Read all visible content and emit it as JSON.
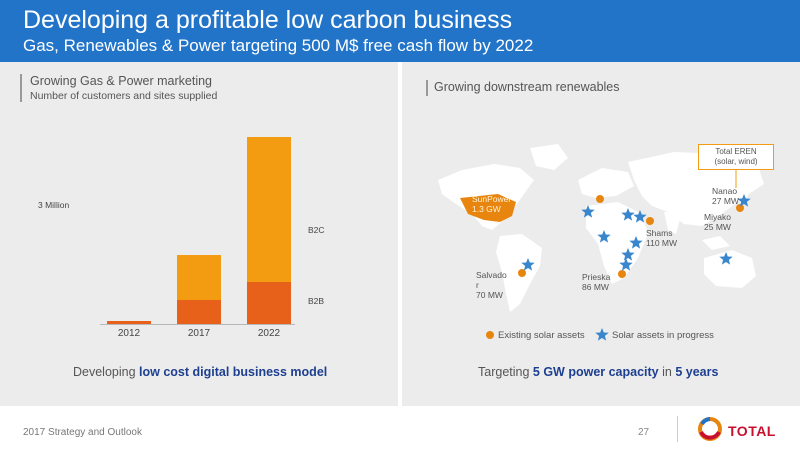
{
  "header": {
    "title": "Developing a profitable low carbon business",
    "subtitle": "Gas, Renewables & Power targeting 500 M$ free cash flow by 2022"
  },
  "left": {
    "title": "Growing Gas & Power marketing",
    "subtitle": "Number of customers and sites supplied",
    "caption_pre": "Developing ",
    "caption_bold": "low cost digital business model"
  },
  "chart_data": {
    "type": "bar",
    "stacked": true,
    "categories": [
      "2012",
      "2017",
      "2022"
    ],
    "series": [
      {
        "name": "B2B",
        "values": [
          0.07,
          0.58,
          1.0
        ]
      },
      {
        "name": "B2C",
        "values": [
          0.0,
          1.05,
          3.42
        ]
      }
    ],
    "annotations": [
      "3 Million"
    ],
    "ylim": [
      0,
      4.5
    ],
    "colors": {
      "B2B": "#e8611a",
      "B2C": "#f39c12"
    }
  },
  "right": {
    "title": "Growing downstream renewables",
    "caption_pre": "Targeting ",
    "caption_bold1": "5 GW power capacity",
    "caption_mid": " in ",
    "caption_bold2": "5 years",
    "callout_line1": "Total EREN",
    "callout_line2": "(solar, wind)",
    "labels": {
      "sunpower_1": "SunPower",
      "sunpower_2": "1.3 GW",
      "nanao_1": "Nanao",
      "nanao_2": "27 MW",
      "miyako_1": "Miyako",
      "miyako_2": "25 MW",
      "shams_1": "Shams",
      "shams_2": "110 MW",
      "salvador_1": "Salvado",
      "salvador_2": "r",
      "salvador_3": "70 MW",
      "prieska_1": "Prieska",
      "prieska_2": "86 MW"
    },
    "legend": {
      "existing": "Existing solar assets",
      "progress": "Solar assets in progress"
    },
    "colors": {
      "land": "#ffffff",
      "usa": "#e8850f",
      "dot": "#e8850f",
      "star": "#3a86cc"
    }
  },
  "footer": {
    "left": "2017 Strategy and Outlook",
    "page": "27",
    "logo": "TOTAL"
  }
}
